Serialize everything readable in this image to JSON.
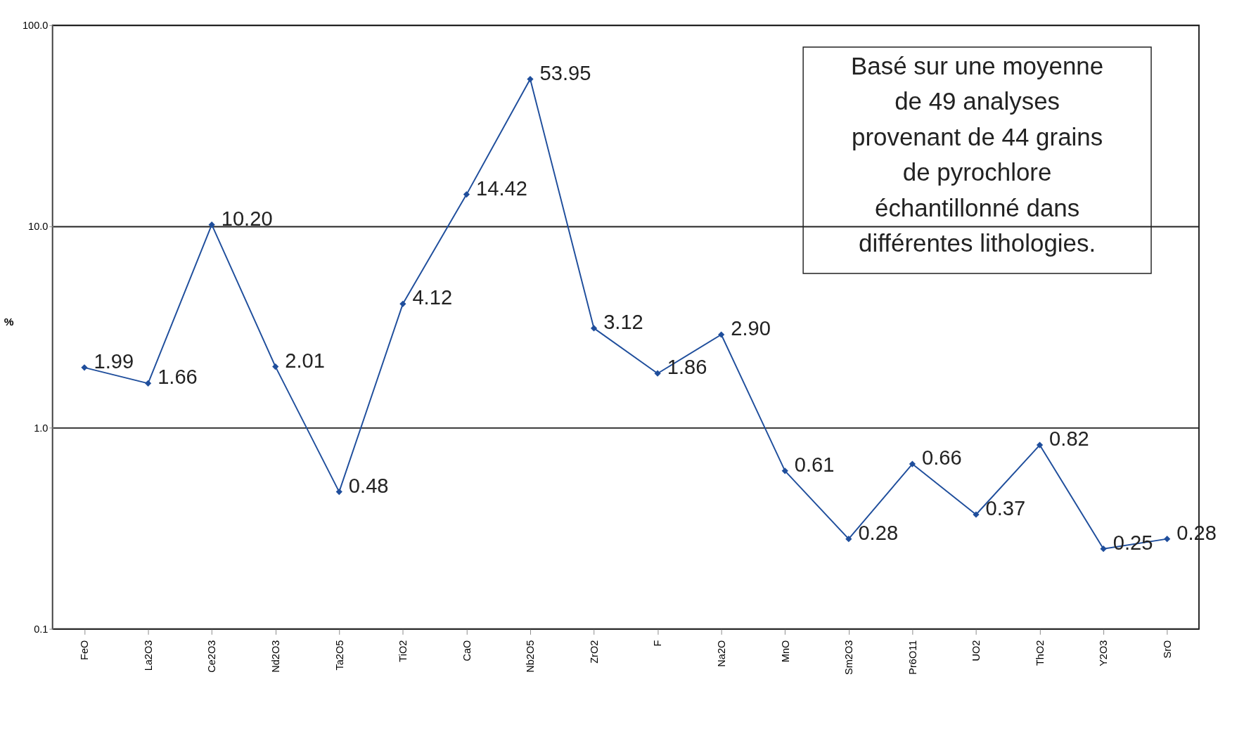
{
  "chart_data": {
    "type": "line",
    "categories": [
      "FeO",
      "La2O3",
      "Ce2O3",
      "Nd2O3",
      "Ta2O5",
      "TiO2",
      "CaO",
      "Nb2O5",
      "ZrO2",
      "F",
      "Na2O",
      "MnO",
      "Sm2O3",
      "Pr6O11",
      "UO2",
      "ThO2",
      "Y2O3",
      "SrO"
    ],
    "series": [
      {
        "color": "#1f4e9c",
        "values": [
          1.99,
          1.66,
          10.2,
          2.01,
          0.48,
          4.12,
          14.42,
          53.95,
          3.12,
          1.86,
          2.9,
          0.61,
          0.28,
          0.66,
          0.37,
          0.82,
          0.25,
          0.28
        ]
      }
    ],
    "ylabel": "%",
    "ylim": [
      0.1,
      100
    ],
    "yticks": [
      {
        "value": 0.1,
        "label": "0.1"
      },
      {
        "value": 1,
        "label": "1.0"
      },
      {
        "value": 10,
        "label": "10.0"
      },
      {
        "value": 100,
        "label": "100.0"
      }
    ],
    "value_labels": [
      "1.99",
      "1.66",
      "10.20",
      "2.01",
      "0.48",
      "4.12",
      "14.42",
      "53.95",
      "3.12",
      "1.86",
      "2.90",
      "0.61",
      "0.28",
      "0.66",
      "0.37",
      "0.82",
      "0.25",
      "0.28"
    ],
    "log": true,
    "grid": "y",
    "marker": "diamond",
    "line_style": "solid",
    "annotations": [
      "Basé sur une moyenne\nde 49 analyses\nprovenant de 44 grains\nde pyrochlore\néchantillonné dans\ndifférentes lithologies."
    ]
  }
}
